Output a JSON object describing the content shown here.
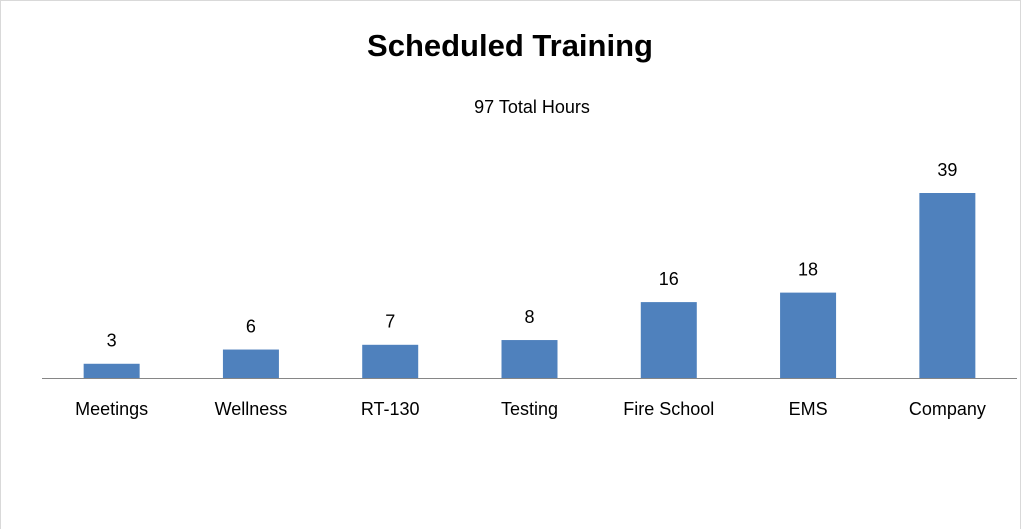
{
  "chart_data": {
    "type": "bar",
    "title": "Scheduled Training",
    "subtitle": "97 Total Hours",
    "categories": [
      "Meetings",
      "Wellness",
      "RT-130",
      "Testing",
      "Fire School",
      "EMS",
      "Company"
    ],
    "values": [
      3,
      6,
      7,
      8,
      16,
      18,
      39
    ],
    "color": "#4f81bd"
  }
}
